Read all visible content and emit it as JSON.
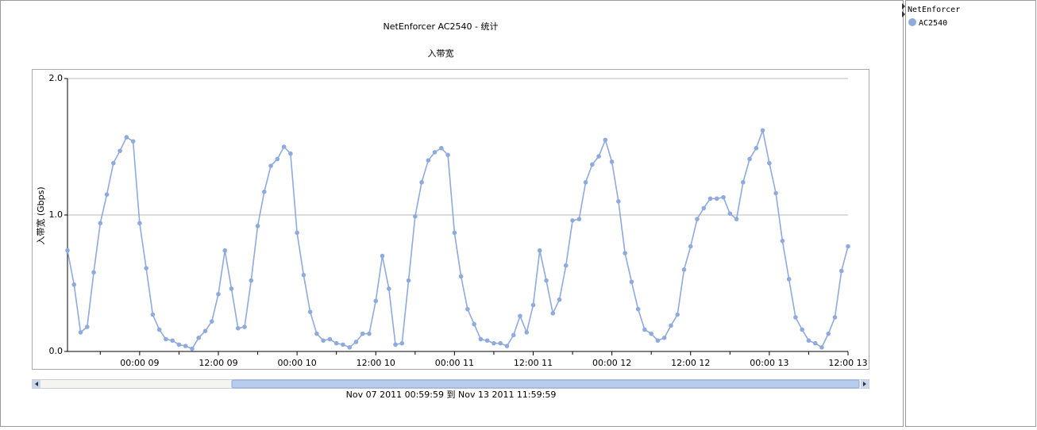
{
  "chart_data": {
    "type": "line",
    "title": "NetEnforcer AC2540 - 统计",
    "subtitle": "入带宽",
    "y_label": "入带宽 (Gbps)",
    "range_label": "Nov 07 2011  00:59:59  到  Nov 13 2011  11:59:59",
    "legend_title": "NetEnforcer",
    "categories": [
      null,
      null,
      null,
      null,
      null,
      null,
      null,
      null,
      null,
      null,
      null,
      "00:00 09",
      null,
      null,
      null,
      null,
      null,
      null,
      null,
      null,
      null,
      null,
      null,
      "12:00 09",
      null,
      null,
      null,
      null,
      null,
      null,
      null,
      null,
      null,
      null,
      null,
      "00:00 10",
      null,
      null,
      null,
      null,
      null,
      null,
      null,
      null,
      null,
      null,
      null,
      "12:00 10",
      null,
      null,
      null,
      null,
      null,
      null,
      null,
      null,
      null,
      null,
      null,
      "00:00 11",
      null,
      null,
      null,
      null,
      null,
      null,
      null,
      null,
      null,
      null,
      null,
      "12:00 11",
      null,
      null,
      null,
      null,
      null,
      null,
      null,
      null,
      null,
      null,
      null,
      "00:00 12",
      null,
      null,
      null,
      null,
      null,
      null,
      null,
      null,
      null,
      null,
      null,
      "12:00 12",
      null,
      null,
      null,
      null,
      null,
      null,
      null,
      null,
      null,
      null,
      null,
      "00:00 13",
      null,
      null,
      null,
      null,
      null,
      null,
      null,
      null,
      null,
      null,
      null,
      "12:00 13"
    ],
    "series": [
      {
        "name": "AC2540",
        "color": "#8faadc",
        "values": [
          0.74,
          0.49,
          0.14,
          0.18,
          0.58,
          0.94,
          1.15,
          1.38,
          1.47,
          1.57,
          1.54,
          0.94,
          0.61,
          0.27,
          0.16,
          0.09,
          0.08,
          0.05,
          0.04,
          0.02,
          0.1,
          0.15,
          0.22,
          0.42,
          0.74,
          0.46,
          0.17,
          0.18,
          0.52,
          0.92,
          1.17,
          1.36,
          1.41,
          1.5,
          1.45,
          0.87,
          0.56,
          0.29,
          0.13,
          0.08,
          0.09,
          0.06,
          0.05,
          0.03,
          0.07,
          0.13,
          0.13,
          0.37,
          0.7,
          0.46,
          0.05,
          0.06,
          0.52,
          0.99,
          1.24,
          1.4,
          1.46,
          1.49,
          1.44,
          0.87,
          0.55,
          0.31,
          0.2,
          0.09,
          0.08,
          0.06,
          0.06,
          0.04,
          0.12,
          0.26,
          0.14,
          0.34,
          0.74,
          0.52,
          0.28,
          0.38,
          0.63,
          0.96,
          0.97,
          1.24,
          1.37,
          1.43,
          1.55,
          1.39,
          1.1,
          0.72,
          0.51,
          0.31,
          0.16,
          0.13,
          0.08,
          0.1,
          0.19,
          0.27,
          0.6,
          0.77,
          0.97,
          1.05,
          1.12,
          1.12,
          1.13,
          1.01,
          0.97,
          1.24,
          1.41,
          1.49,
          1.62,
          1.38,
          1.16,
          0.81,
          0.53,
          0.25,
          0.16,
          0.08,
          0.06,
          0.03,
          0.13,
          0.25,
          0.59,
          0.77
        ]
      }
    ],
    "ylim": [
      0,
      2
    ],
    "yticks": [
      {
        "value": 0,
        "label": "0.0"
      },
      {
        "value": 1,
        "label": "1.0"
      },
      {
        "value": 2,
        "label": "2.0"
      }
    ],
    "grid": true
  }
}
